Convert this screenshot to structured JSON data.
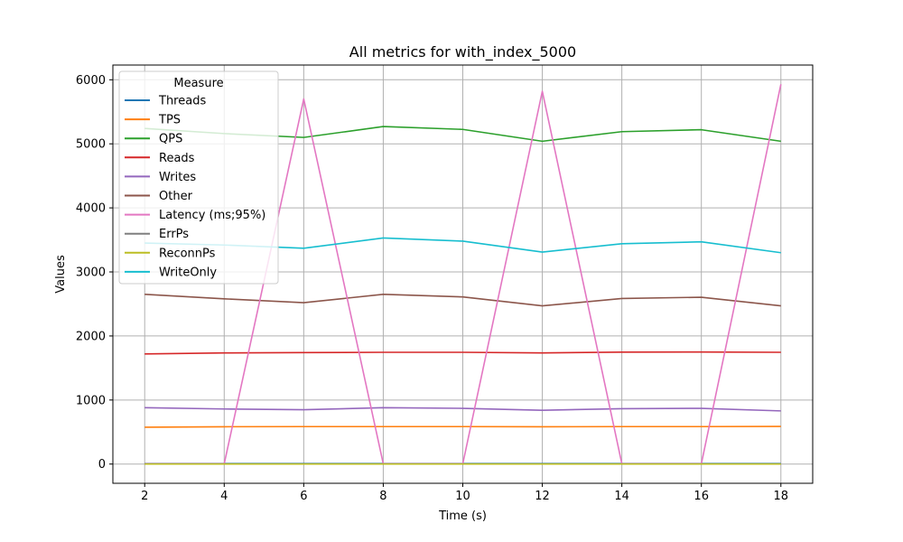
{
  "chart_data": {
    "type": "line",
    "title": "All metrics for with_index_5000",
    "xlabel": "Time (s)",
    "ylabel": "Values",
    "xlim": [
      1.2,
      18.8
    ],
    "ylim": [
      -300,
      6230
    ],
    "xticks": [
      2,
      4,
      6,
      8,
      10,
      12,
      14,
      16,
      18
    ],
    "yticks": [
      0,
      1000,
      2000,
      3000,
      4000,
      5000,
      6000
    ],
    "grid": true,
    "legend": {
      "title": "Measure",
      "placement": "top-left"
    },
    "x": [
      2,
      4,
      6,
      8,
      10,
      12,
      14,
      16,
      18
    ],
    "series": [
      {
        "name": "Threads",
        "color": "#1f77b4",
        "values": [
          8,
          8,
          8,
          8,
          8,
          8,
          8,
          8,
          8
        ]
      },
      {
        "name": "TPS",
        "color": "#ff7f0e",
        "values": [
          575,
          583,
          585,
          585,
          585,
          582,
          585,
          585,
          587
        ]
      },
      {
        "name": "QPS",
        "color": "#2ca02c",
        "values": [
          5240,
          5160,
          5100,
          5270,
          5225,
          5040,
          5190,
          5220,
          5040
        ]
      },
      {
        "name": "Reads",
        "color": "#d62728",
        "values": [
          1720,
          1735,
          1740,
          1745,
          1745,
          1735,
          1748,
          1750,
          1745
        ]
      },
      {
        "name": "Writes",
        "color": "#9467bd",
        "values": [
          880,
          860,
          848,
          880,
          870,
          840,
          865,
          870,
          830
        ]
      },
      {
        "name": "Other",
        "color": "#8c564b",
        "values": [
          2650,
          2580,
          2520,
          2650,
          2610,
          2470,
          2585,
          2605,
          2470
        ]
      },
      {
        "name": "Latency (ms;95%)",
        "color": "#e377c2",
        "values": [
          5,
          5,
          5700,
          5,
          5,
          5820,
          5,
          5,
          5930
        ]
      },
      {
        "name": "ErrPs",
        "color": "#7f7f7f",
        "values": [
          0,
          0,
          0,
          0,
          0,
          0,
          0,
          0,
          0
        ]
      },
      {
        "name": "ReconnPs",
        "color": "#bcbd22",
        "values": [
          0,
          0,
          0,
          0,
          0,
          0,
          0,
          0,
          0
        ]
      },
      {
        "name": "WriteOnly",
        "color": "#17becf",
        "values": [
          3450,
          3420,
          3370,
          3530,
          3480,
          3310,
          3440,
          3470,
          3300
        ]
      }
    ]
  }
}
